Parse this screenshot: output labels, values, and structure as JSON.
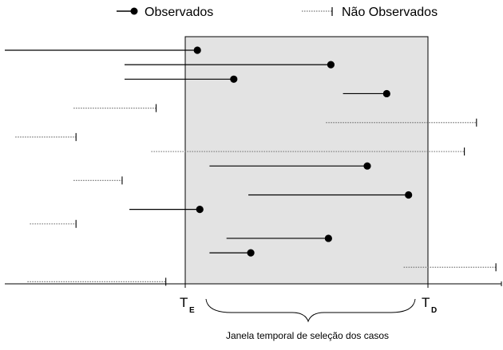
{
  "legend": {
    "observed_label": "Observados",
    "unobserved_label": "Não Observados"
  },
  "axis": {
    "start_main": "T",
    "start_sub": "E",
    "end_main": "T",
    "end_sub": "D",
    "window_caption": "Janela temporal de seleção dos casos"
  },
  "colors": {
    "window_fill": "#e3e3e3",
    "line": "#000000",
    "dotted": "#777777"
  },
  "cases": [
    {
      "kind": "observed",
      "start": -0.9,
      "end": 0.05
    },
    {
      "kind": "observed",
      "start": -0.25,
      "end": 0.6
    },
    {
      "kind": "observed",
      "start": -0.25,
      "end": 0.2
    },
    {
      "kind": "observed",
      "start": 0.65,
      "end": 0.83
    },
    {
      "kind": "unobserved",
      "start": -0.46,
      "end": -0.12
    },
    {
      "kind": "unobserved",
      "start": 0.58,
      "end": 1.2
    },
    {
      "kind": "unobserved",
      "start": -0.7,
      "end": -0.45
    },
    {
      "kind": "unobserved",
      "start": -0.14,
      "end": 1.15
    },
    {
      "kind": "observed",
      "start": 0.1,
      "end": 0.75
    },
    {
      "kind": "unobserved",
      "start": -0.46,
      "end": -0.26
    },
    {
      "kind": "observed",
      "start": 0.26,
      "end": 0.92
    },
    {
      "kind": "observed",
      "start": -0.23,
      "end": 0.06
    },
    {
      "kind": "unobserved",
      "start": -0.64,
      "end": -0.45
    },
    {
      "kind": "observed",
      "start": 0.17,
      "end": 0.59
    },
    {
      "kind": "observed",
      "start": 0.1,
      "end": 0.27
    },
    {
      "kind": "unobserved",
      "start": 0.9,
      "end": 1.28
    },
    {
      "kind": "unobserved",
      "start": -0.65,
      "end": -0.08
    }
  ]
}
